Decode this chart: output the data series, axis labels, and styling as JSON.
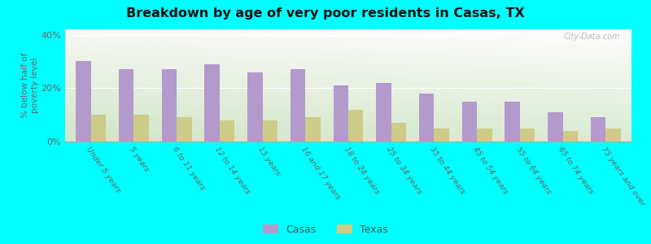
{
  "title": "Breakdown by age of very poor residents in Casas, TX",
  "categories": [
    "Under 5 years",
    "5 years",
    "6 to 11 years",
    "12 to 14 years",
    "15 years",
    "16 and 17 years",
    "18 to 24 years",
    "25 to 34 years",
    "35 to 44 years",
    "45 to 54 years",
    "55 to 64 years",
    "65 to 74 years",
    "75 years and over"
  ],
  "casas_values": [
    30,
    27,
    27,
    29,
    26,
    27,
    21,
    22,
    18,
    15,
    15,
    11,
    9
  ],
  "texas_values": [
    10,
    10,
    9,
    8,
    8,
    9,
    12,
    7,
    5,
    5,
    5,
    4,
    5
  ],
  "casas_color": "#b399cc",
  "texas_color": "#cccc88",
  "ylabel": "% below half of\npoverty level",
  "ylim": [
    0,
    42
  ],
  "yticks": [
    0,
    20,
    40
  ],
  "ytick_labels": [
    "0%",
    "20%",
    "40%"
  ],
  "bg_color_topleft": "#d8ecd4",
  "bg_color_topright": "#f0f0e0",
  "bg_color_bottomleft": "#c8e8c4",
  "outer_background": "#00ffff",
  "bar_width": 0.35,
  "watermark": "City-Data.com",
  "legend_casas": "Casas",
  "legend_texas": "Texas"
}
